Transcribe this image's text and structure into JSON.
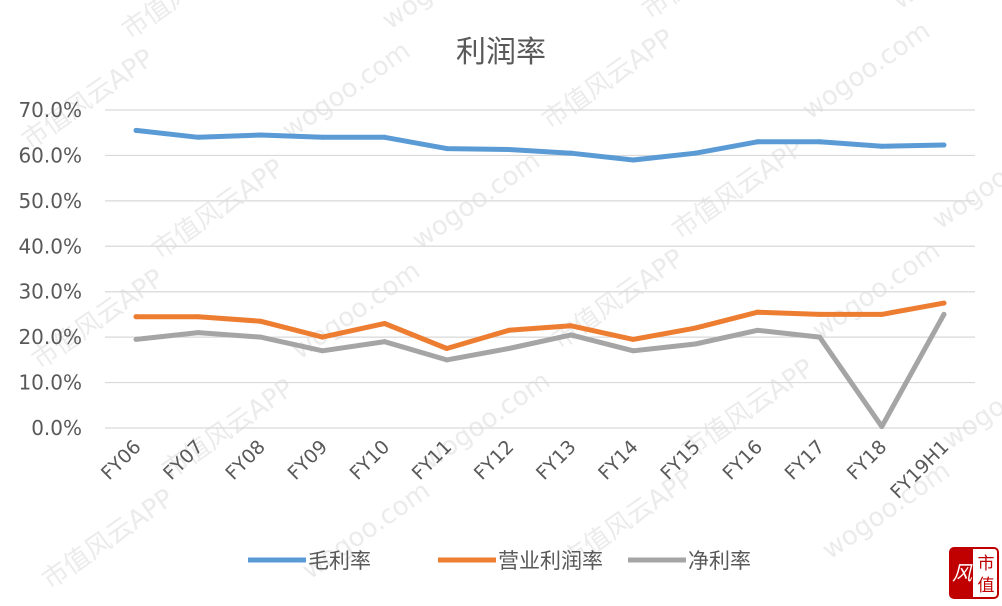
{
  "chart_data": {
    "type": "line",
    "title": "利润率",
    "categories": [
      "FY06",
      "FY07",
      "FY08",
      "FY09",
      "FY10",
      "FY11",
      "FY12",
      "FY13",
      "FY14",
      "FY15",
      "FY16",
      "FY17",
      "FY18",
      "FY19H1"
    ],
    "ylim": [
      0,
      70
    ],
    "yticks": [
      "0.0%",
      "10.0%",
      "20.0%",
      "30.0%",
      "40.0%",
      "50.0%",
      "60.0%",
      "70.0%"
    ],
    "grid": true,
    "legend_position": "bottom",
    "series": [
      {
        "name": "毛利率",
        "color": "#5b9bd5",
        "values": [
          65.5,
          64.0,
          64.5,
          64.0,
          64.0,
          61.5,
          61.3,
          60.5,
          59.0,
          60.5,
          63.0,
          63.0,
          62.0,
          62.3
        ]
      },
      {
        "name": "营业利润率",
        "color": "#ed7d31",
        "values": [
          24.5,
          24.5,
          23.5,
          20.0,
          23.0,
          17.5,
          21.5,
          22.5,
          19.5,
          22.0,
          25.5,
          25.0,
          25.0,
          27.5
        ]
      },
      {
        "name": "净利率",
        "color": "#a5a5a5",
        "values": [
          19.5,
          21.0,
          20.0,
          17.0,
          19.0,
          15.0,
          17.5,
          20.5,
          17.0,
          18.5,
          21.5,
          20.0,
          0.3,
          25.0
        ]
      }
    ]
  },
  "watermark": {
    "text_cn": "市值风云APP",
    "text_url": "wogoo.com",
    "logo_chars": [
      "风",
      "市",
      "值"
    ]
  }
}
